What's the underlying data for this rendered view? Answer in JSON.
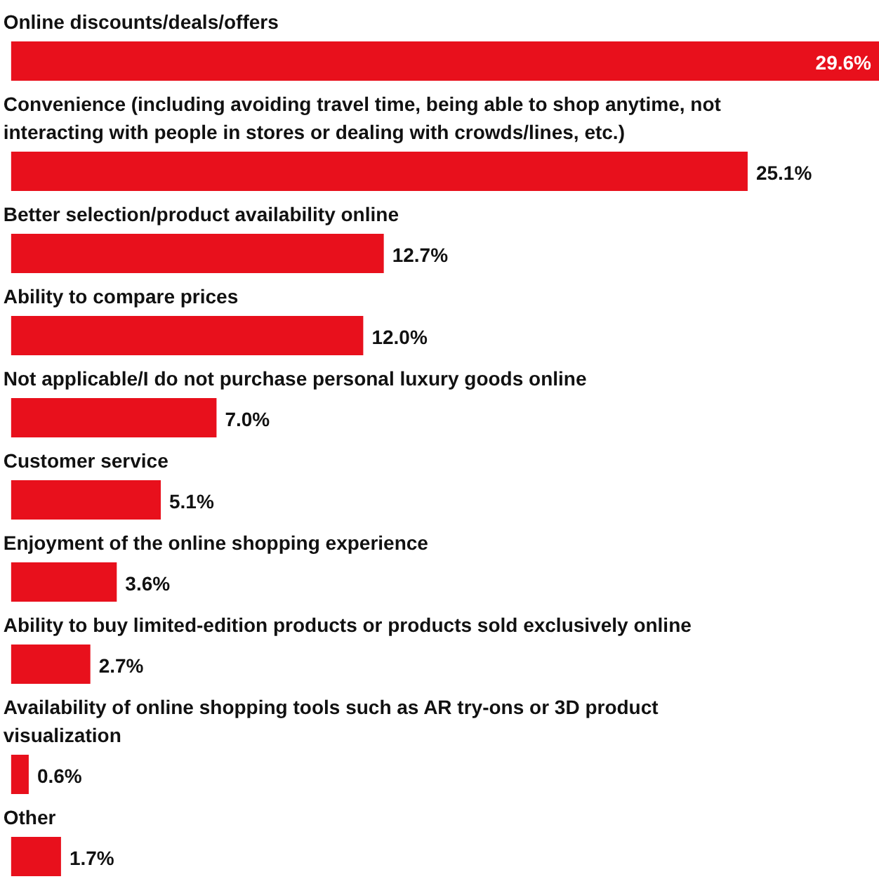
{
  "chart_data": {
    "type": "bar",
    "orientation": "horizontal",
    "color": "#e8101c",
    "value_labels": [
      "29.6%",
      "25.1%",
      "12.7%",
      "12.0%",
      "7.0%",
      "5.1%",
      "3.6%",
      "2.7%",
      "0.6%",
      "1.7%"
    ],
    "categories": [
      "Online discounts/deals/offers",
      "Convenience (including avoiding travel time, being able to shop anytime, not interacting with people in stores or dealing with crowds/lines, etc.)",
      "Better selection/product availability online",
      "Ability to compare prices",
      "Not applicable/I do not purchase personal luxury goods online",
      "Customer service",
      "Enjoyment of the online shopping experience",
      "Ability to buy limited-edition products or products sold exclusively online",
      "Availability of online shopping tools such as AR try-ons or 3D product visualization",
      "Other"
    ],
    "values": [
      29.6,
      25.1,
      12.7,
      12.0,
      7.0,
      5.1,
      3.6,
      2.7,
      0.6,
      1.7
    ]
  }
}
